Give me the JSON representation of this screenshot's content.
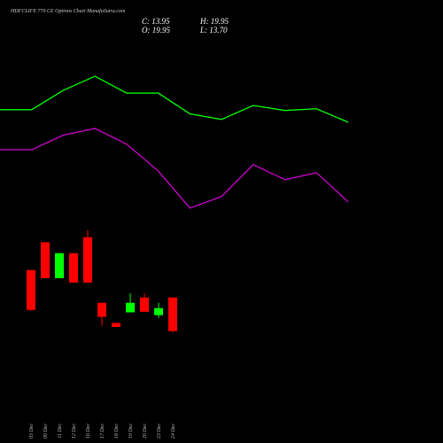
{
  "title": "HDFCLIFE 770 CE Options Chart MunafaSutra.com",
  "ohlc": {
    "close": "C: 13.95",
    "open": "O: 19.95",
    "high": "H: 19.95",
    "low": "L: 13.70"
  },
  "chart_data": [
    {
      "type": "candlestick",
      "categories": [
        "03 Dec",
        "09 Dec",
        "11 Dec",
        "12 Dec",
        "16 Dec",
        "17 Dec",
        "18 Dec",
        "19 Dec",
        "20 Dec",
        "23 Dec",
        "24 Dec"
      ],
      "open": [
        24.85,
        29.8,
        23.4,
        27.85,
        30.7,
        19.0,
        15.4,
        17.3,
        19.95,
        16.8,
        19.95
      ],
      "high": [
        24.85,
        29.8,
        27.85,
        27.85,
        31.95,
        19.0,
        15.4,
        20.7,
        20.7,
        19.0,
        19.95
      ],
      "low": [
        17.6,
        23.4,
        23.4,
        22.6,
        22.6,
        14.9,
        14.7,
        17.3,
        17.4,
        16.3,
        13.7
      ],
      "close": [
        17.74,
        23.4,
        27.85,
        22.6,
        22.6,
        16.5,
        14.7,
        19.0,
        17.4,
        18.05,
        13.95
      ],
      "up_color": "#00ff00",
      "down_color": "#ff0000",
      "ylim": [
        -6,
        73
      ]
    },
    {
      "type": "line",
      "categories": [
        null,
        null,
        null,
        null,
        null,
        null,
        null,
        null,
        null,
        null,
        null,
        null
      ],
      "series": [
        {
          "color": "#00ff00",
          "values": [
            53.44,
            53.44,
            56.9,
            59.4,
            56.4,
            56.4,
            52.7,
            51.7,
            54.2,
            53.3,
            53.6,
            51.2
          ]
        },
        {
          "color": "#cc00cc",
          "values": [
            46.3,
            46.3,
            48.9,
            50.1,
            47.3,
            42.5,
            35.9,
            37.96,
            43.65,
            40.96,
            42.2,
            37.0
          ]
        }
      ],
      "ylim": [
        -6,
        73
      ]
    }
  ]
}
